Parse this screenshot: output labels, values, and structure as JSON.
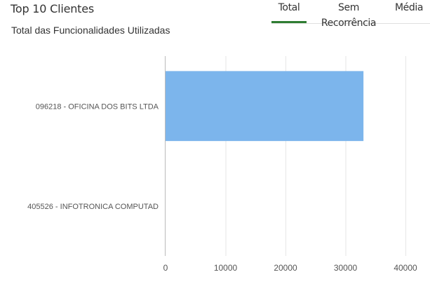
{
  "header": {
    "title": "Top 10 Clientes",
    "subtitle": "Total das Funcionalidades Utilizadas"
  },
  "tabs": [
    {
      "label": "Total",
      "active": true
    },
    {
      "label": "Sem Recorrência",
      "active": false
    },
    {
      "label": "Média",
      "active": false
    }
  ],
  "colors": {
    "bar": "#7cb5ec",
    "grid": "#e6e6e6",
    "axis": "#bbbbbb",
    "active_tab": "#2e7d32"
  },
  "chart_data": {
    "type": "bar",
    "orientation": "horizontal",
    "categories": [
      "096218 - OFICINA DOS BITS LTDA",
      "405526 - INFOTRONICA COMPUTAD"
    ],
    "values": [
      33000,
      0
    ],
    "xlim": [
      0,
      40000
    ],
    "xticks": [
      0,
      10000,
      20000,
      30000,
      40000
    ],
    "xtick_labels": [
      "0",
      "10000",
      "20000",
      "30000",
      "40000"
    ],
    "grid": true,
    "legend": "none"
  }
}
